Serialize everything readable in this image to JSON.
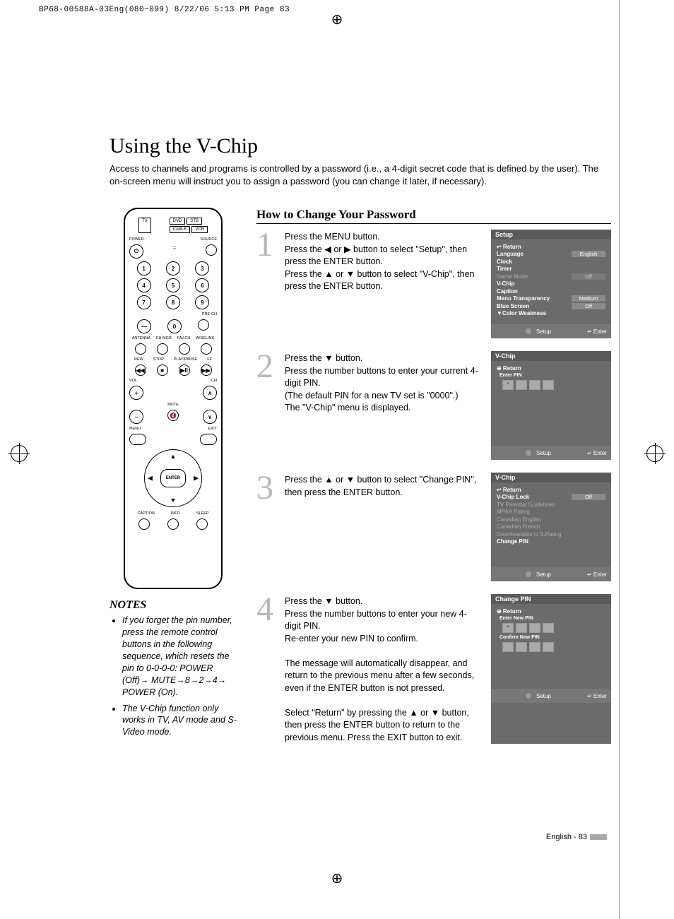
{
  "print_header": "BP68-00588A-03Eng(080~099)  8/22/06  5:13 PM  Page 83",
  "title": "Using the V-Chip",
  "intro": "Access to channels and programs is controlled by a password (i.e., a 4-digit secret code that is defined by the user). The on-screen menu will instruct you to assign a password (you can change it later, if necessary).",
  "notes_title": "NOTES",
  "notes": [
    "If you forget the pin number, press the remote control buttons in the following sequence, which resets the pin to 0-0-0-0: POWER (Off)→ MUTE→8→2→4→ POWER (On).",
    "The V-Chip function only works in TV, AV mode and S-Video mode."
  ],
  "section_title": "How to Change Your Password",
  "steps": [
    {
      "num": "1",
      "text": "Press the MENU button.\nPress the ◀ or ▶ button to select \"Setup\", then press  the ENTER button.\nPress the ▲ or ▼ button to select \"V-Chip\", then press the ENTER button.",
      "screen": {
        "title": "Setup",
        "items": [
          {
            "label": "Return",
            "icon": "↩"
          },
          {
            "label": "Language",
            "value": "English"
          },
          {
            "label": "Clock"
          },
          {
            "label": "Timer"
          },
          {
            "label": "Game Mode",
            "value": "Off",
            "dim": true
          },
          {
            "label": "V-Chip"
          },
          {
            "label": "Caption"
          },
          {
            "label": "Menu Transparency",
            "value": "Medium"
          },
          {
            "label": "Blue Screen",
            "value": "Off"
          },
          {
            "label": "▼Color Weakness"
          }
        ],
        "hint_label": "Setup",
        "hint_right": "↵ Enter"
      }
    },
    {
      "num": "2",
      "text": "Press the ▼ button.\nPress the number buttons to enter your current 4-digit PIN.\n(The default PIN for a new TV set is \"0000\".)\nThe \"V-Chip\" menu is displayed.",
      "screen": {
        "title": "V-Chip",
        "return": "Return",
        "pin_label": "Enter PIN",
        "pins": [
          "*",
          "",
          "",
          ""
        ],
        "hint_label": "Setup",
        "hint_right": "↵ Enter"
      }
    },
    {
      "num": "3",
      "text": "Press the ▲ or ▼ button to select \"Change PIN\", then press the ENTER button.",
      "screen": {
        "title": "V-Chip",
        "items": [
          {
            "label": "Return",
            "icon": "↩"
          },
          {
            "label": "V-Chip Lock",
            "value": "Off"
          },
          {
            "label": "TV Parental Guidelines",
            "dim": true
          },
          {
            "label": "MPAA Rating",
            "dim": true
          },
          {
            "label": "Canadian English",
            "dim": true
          },
          {
            "label": "Canadian French",
            "dim": true
          },
          {
            "label": "Downloadable U.S.Rating",
            "dim": true
          },
          {
            "label": "Change PIN"
          }
        ],
        "hint_label": "Setup",
        "hint_right": "↵ Enter"
      }
    },
    {
      "num": "4",
      "text": "Press the ▼ button.\nPress the number buttons to enter your new 4-digit PIN.\nRe-enter your new PIN to confirm.\n\nThe message will automatically disappear, and return to the previous menu after a few seconds, even if the ENTER button is not pressed.\n\nSelect \"Return\" by pressing the ▲ or ▼ button, then press the ENTER button to return to the previous menu. Press the EXIT button to exit.",
      "screen": {
        "title": "Change PIN",
        "return": "Return",
        "pin_groups": [
          {
            "label": "Enter New PIN",
            "pins": [
              "*",
              "",
              "",
              ""
            ]
          },
          {
            "label": "Confirm New PIN",
            "pins": [
              "",
              "",
              "",
              ""
            ]
          }
        ],
        "hint_label": "Setup",
        "hint_right": "↵ Enter"
      }
    }
  ],
  "remote_buttons": {
    "sources": [
      "TV",
      "DVD",
      "STB",
      "CABLE",
      "VCR"
    ],
    "power": "POWER",
    "source": "SOURCE",
    "numpad": [
      "1",
      "2",
      "3",
      "4",
      "5",
      "6",
      "7",
      "8",
      "9",
      "—",
      "0"
    ],
    "prech": "PRE-CH",
    "row_labels": [
      "ANTENNA",
      "CH MGR",
      "FAV.CH",
      "WISELINK"
    ],
    "transport": [
      "REW",
      "STOP",
      "PLAY/PAUSE",
      "FF"
    ],
    "vol": "VOL",
    "ch": "CH",
    "mute": "MUTE",
    "menu": "MENU",
    "exit": "EXIT",
    "enter": "ENTER",
    "bottom": [
      "CAPTION",
      "INFO",
      "SLEEP"
    ]
  },
  "footer": "English - 83",
  "colors": {
    "screen_bg": "#6b6b6b",
    "screen_title": "#5a5a5a",
    "step_num": "#b8b8b8",
    "value_box": "#8a8a8a"
  }
}
